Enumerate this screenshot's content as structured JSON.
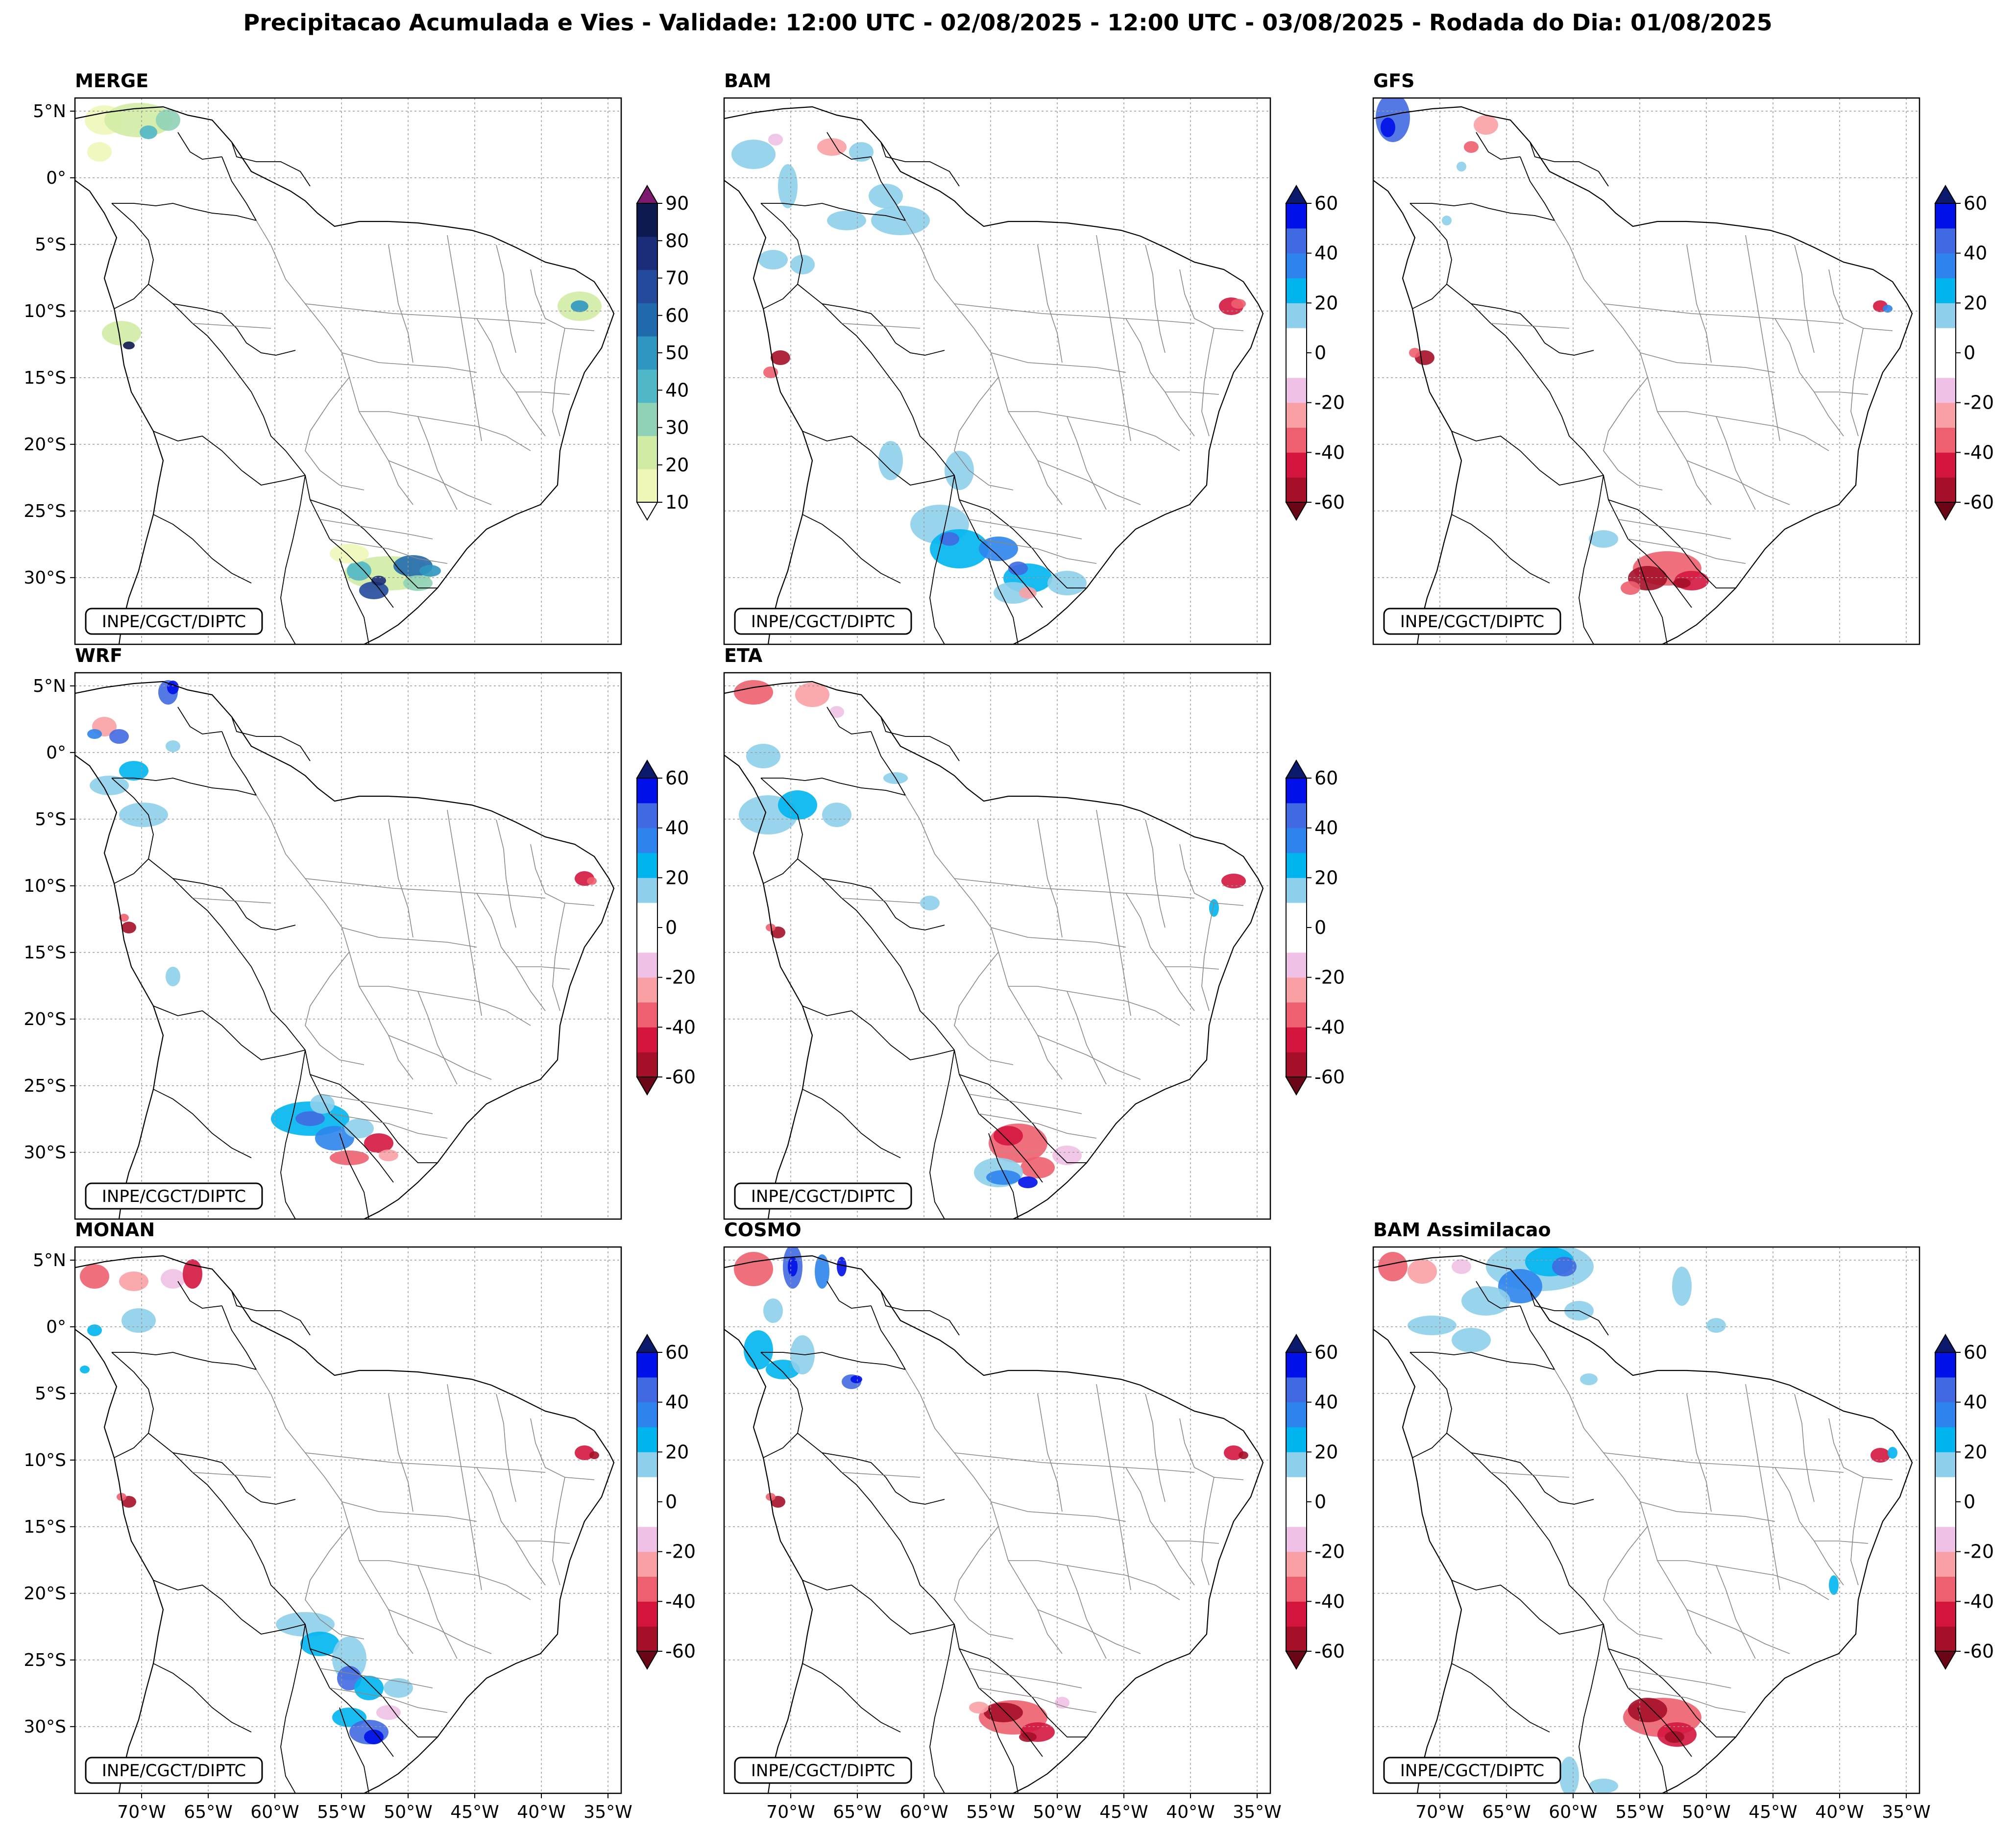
{
  "title": "Precipitacao Acumulada e Vies - Validade: 12:00 UTC - 02/08/2025 - 12:00 UTC - 03/08/2025 - Rodada do Dia: 01/08/2025",
  "credit": "INPE/CGCT/DIPTC",
  "lat_ticks": [
    "5°N",
    "0°",
    "5°S",
    "10°S",
    "15°S",
    "20°S",
    "25°S",
    "30°S"
  ],
  "lon_ticks": [
    "70°W",
    "65°W",
    "60°W",
    "55°W",
    "50°W",
    "45°W",
    "40°W",
    "35°W"
  ],
  "map_extent": {
    "lon": [
      -75,
      -34
    ],
    "lat": [
      -35,
      6
    ]
  },
  "merge_colorbar": {
    "ticks": [
      "90",
      "80",
      "70",
      "60",
      "50",
      "40",
      "30",
      "20",
      "10"
    ],
    "colors": [
      "#eef7b8",
      "#d0eba4",
      "#8fd2b6",
      "#4fb7c6",
      "#2e96c0",
      "#2169ad",
      "#244a9c",
      "#1b2c78",
      "#0d1a4f"
    ],
    "over_color": "#7b1a6f",
    "under_color": "#ffffff"
  },
  "bias_colorbar": {
    "ticks": [
      "60",
      "40",
      "20",
      "0",
      "-20",
      "-40",
      "-60"
    ],
    "colors": [
      "#a50f28",
      "#d4163f",
      "#ee5f6f",
      "#f9a0a4",
      "#f0c1e6",
      "#ffffff",
      "#ffffff",
      "#8ecfeb",
      "#00b5ee",
      "#2e84ec",
      "#4169e1",
      "#0010e8"
    ],
    "over_color": "#0c1a6e",
    "under_color": "#6a0616"
  },
  "panels": [
    {
      "id": "merge",
      "title": "MERGE"
    },
    {
      "id": "bam",
      "title": "BAM"
    },
    {
      "id": "gfs",
      "title": "GFS"
    },
    {
      "id": "wrf",
      "title": "WRF"
    },
    {
      "id": "eta",
      "title": "ETA"
    },
    {
      "id": "monan",
      "title": "MONAN"
    },
    {
      "id": "cosmo",
      "title": "COSMO"
    },
    {
      "id": "bam-assim",
      "title": "BAM Assimilacao"
    }
  ]
}
